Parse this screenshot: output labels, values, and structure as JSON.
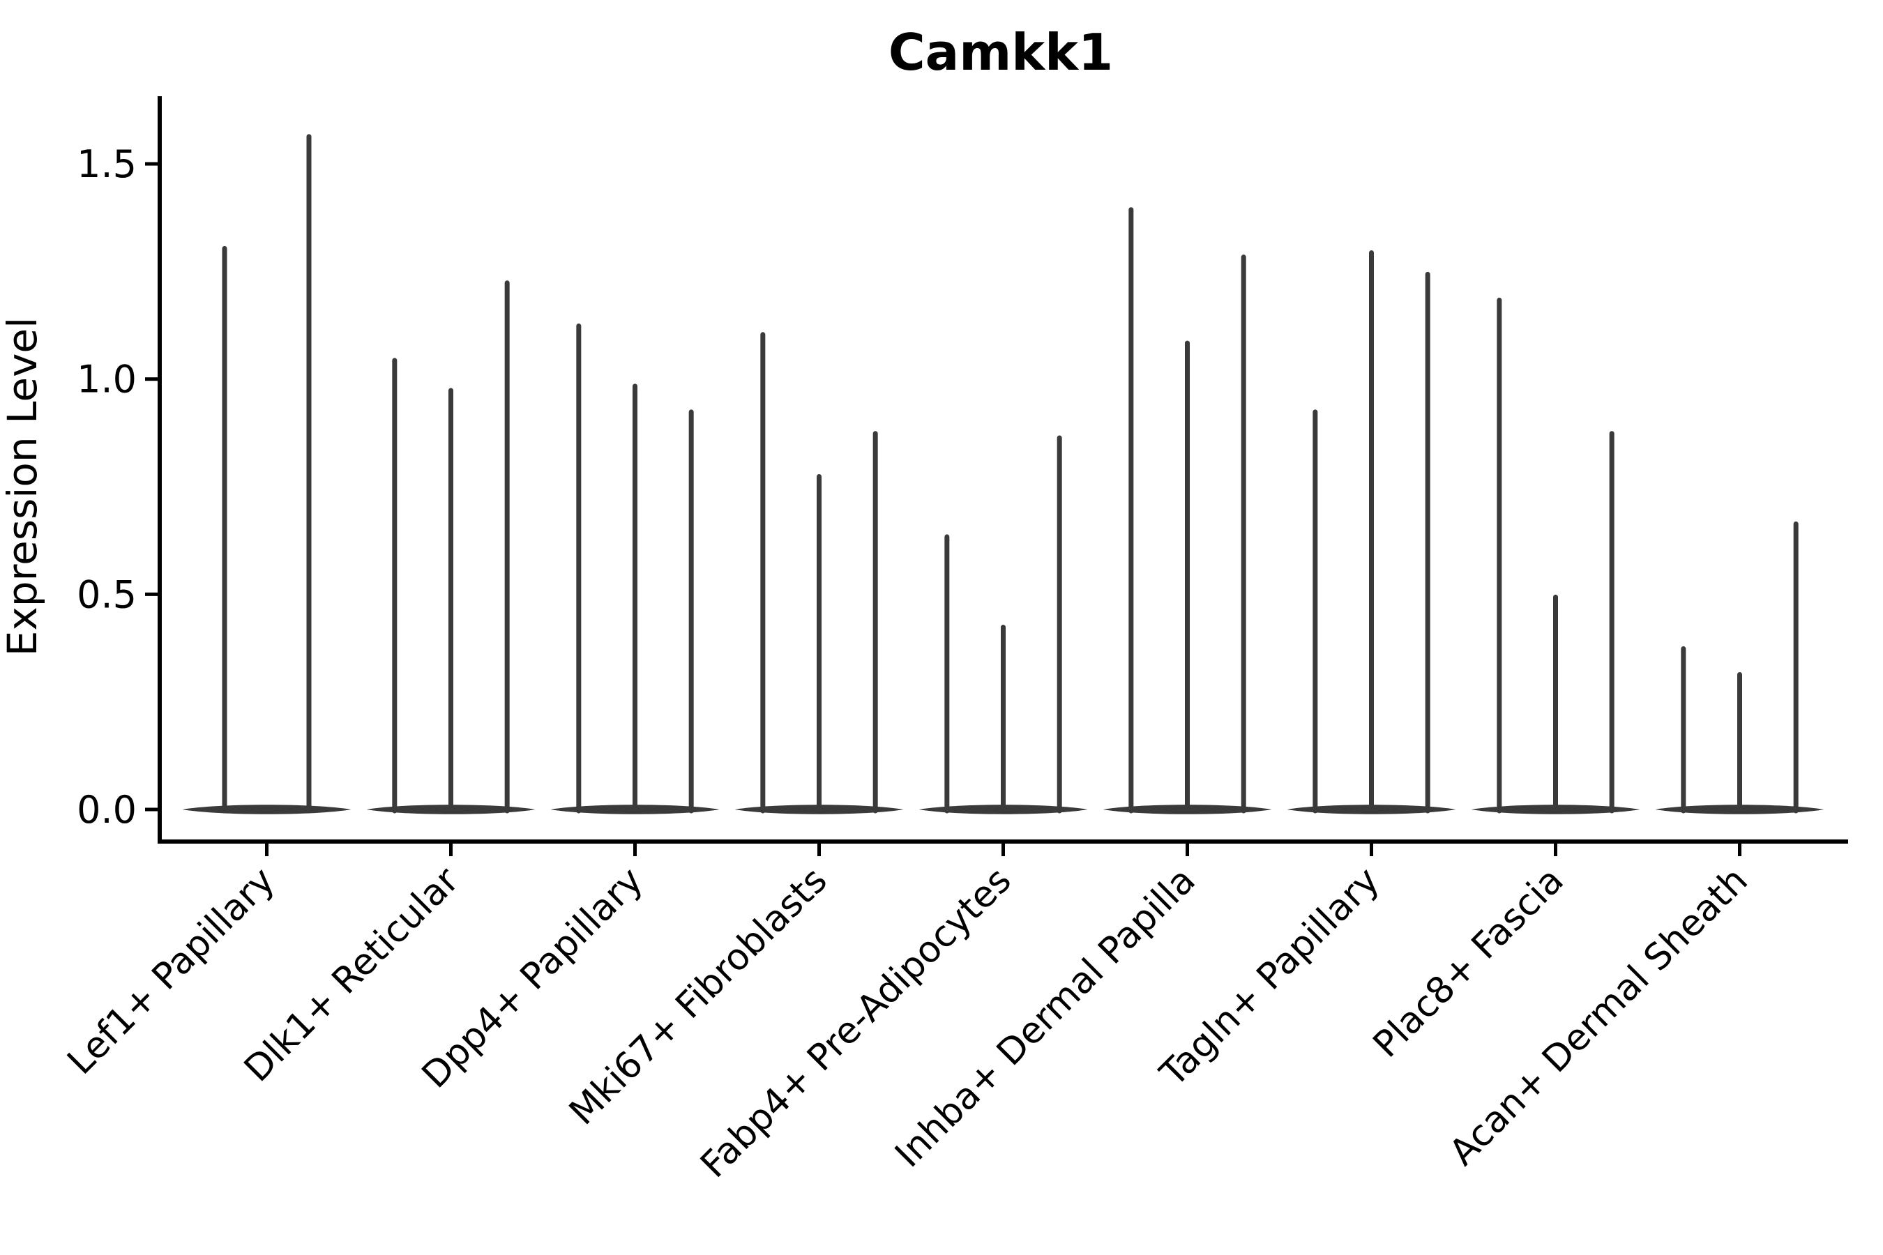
{
  "title": "Camkk1",
  "ylabel": "Expression Level",
  "chart_data": {
    "type": "violin",
    "title": "Camkk1",
    "xlabel": "",
    "ylabel": "Expression Level",
    "ylim": [
      -0.075,
      1.655
    ],
    "yticks": [
      0.0,
      0.5,
      1.0,
      1.5
    ],
    "ytick_labels": [
      "0.0",
      "0.5",
      "1.0",
      "1.5"
    ],
    "grid": false,
    "legend": "none",
    "violin_color": "#3a3a3a",
    "description": "Violin plot of gene expression; each cell-type group holds violins (one per sample) collapsed at 0 with a thin spike rising to the max expression value.",
    "categories": [
      "Lef1+ Papillary",
      "Dlk1+ Reticular",
      "Dpp4+ Papillary",
      "Mki67+ Fibroblasts",
      "Fabp4+ Pre-Adipocytes",
      "Inhba+ Dermal Papilla",
      "Tagln+ Papillary",
      "Plac8+ Fascia",
      "Acan+ Dermal Sheath"
    ],
    "series": [
      {
        "category": "Lef1+ Papillary",
        "max_values": [
          1.31,
          1.57
        ]
      },
      {
        "category": "Dlk1+ Reticular",
        "max_values": [
          1.05,
          0.98,
          1.23
        ]
      },
      {
        "category": "Dpp4+ Papillary",
        "max_values": [
          1.13,
          0.99,
          0.93
        ]
      },
      {
        "category": "Mki67+ Fibroblasts",
        "max_values": [
          1.11,
          0.78,
          0.88
        ]
      },
      {
        "category": "Fabp4+ Pre-Adipocytes",
        "max_values": [
          0.64,
          0.43,
          0.87
        ]
      },
      {
        "category": "Inhba+ Dermal Papilla",
        "max_values": [
          1.4,
          1.09,
          1.29
        ]
      },
      {
        "category": "Tagln+ Papillary",
        "max_values": [
          0.93,
          1.3,
          1.25
        ]
      },
      {
        "category": "Plac8+ Fascia",
        "max_values": [
          1.19,
          0.5,
          0.88
        ]
      },
      {
        "category": "Acan+ Dermal Sheath",
        "max_values": [
          0.38,
          0.32,
          0.67
        ]
      }
    ]
  }
}
